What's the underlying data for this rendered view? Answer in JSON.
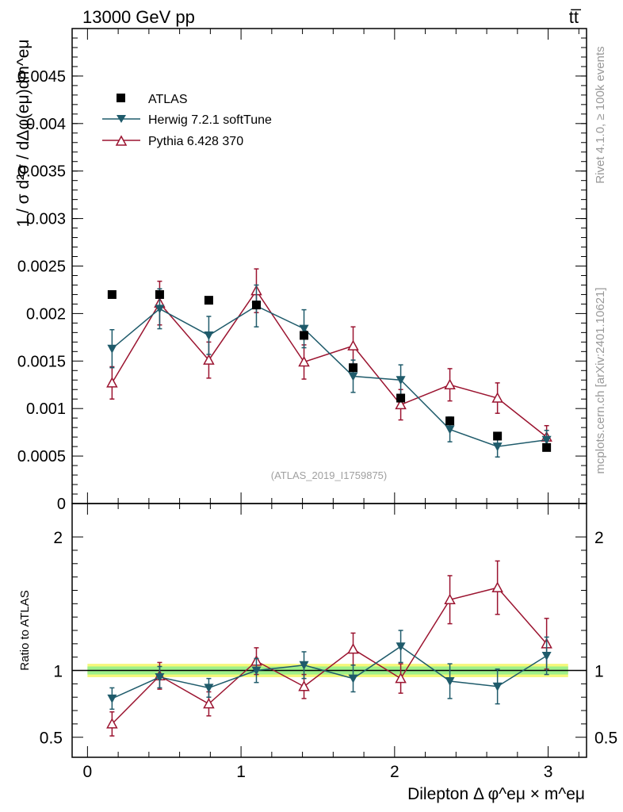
{
  "header": {
    "left": "13000 GeV pp",
    "right": "tt̅"
  },
  "side_labels": {
    "rivet": "Rivet 4.1.0, ≥ 100k events",
    "mcplots": "mcplots.cern.ch [arXiv:2401.10621]"
  },
  "analysis_id": "(ATLAS_2019_I1759875)",
  "legend": [
    {
      "name": "ATLAS",
      "color": "#000000",
      "marker": "square"
    },
    {
      "name": "Herwig 7.2.1 softTune",
      "color": "#1f5b6b",
      "marker": "triangle-down"
    },
    {
      "name": "Pythia 6.428 370",
      "color": "#9b1430",
      "marker": "triangle-up-open"
    }
  ],
  "chart_data": [
    {
      "type": "scatter",
      "panel": "main",
      "ylabel": "1 / σ  d²σ / dΔφ(eμ)dm^eμ",
      "xlim": [
        -0.1,
        3.25
      ],
      "ylim": [
        0,
        0.005
      ],
      "yticks": [
        {
          "v": 0,
          "label": "0"
        },
        {
          "v": 0.0005,
          "label": "0.0005"
        },
        {
          "v": 0.001,
          "label": "0.001"
        },
        {
          "v": 0.0015,
          "label": "0.0015"
        },
        {
          "v": 0.002,
          "label": "0.002"
        },
        {
          "v": 0.0025,
          "label": "0.0025"
        },
        {
          "v": 0.003,
          "label": "0.003"
        },
        {
          "v": 0.0035,
          "label": "0.0035"
        },
        {
          "v": 0.004,
          "label": "0.004"
        },
        {
          "v": 0.0045,
          "label": "0.0045"
        }
      ],
      "x": [
        0.16,
        0.47,
        0.79,
        1.1,
        1.41,
        1.73,
        2.04,
        2.36,
        2.67,
        2.99
      ],
      "series": [
        {
          "name": "ATLAS",
          "values": [
            0.0022,
            0.0022,
            0.00214,
            0.00209,
            0.00177,
            0.00143,
            0.00111,
            0.00087,
            0.00071,
            0.00059
          ]
        },
        {
          "name": "Herwig 7.2.1 softTune",
          "values": [
            0.00163,
            0.00205,
            0.00177,
            0.00208,
            0.00184,
            0.00134,
            0.0013,
            0.00078,
            0.0006,
            0.00067
          ],
          "errors": [
            0.0002,
            0.00021,
            0.0002,
            0.00022,
            0.0002,
            0.00017,
            0.00016,
            0.00013,
            0.00011,
            0.0001
          ]
        },
        {
          "name": "Pythia 6.428 370",
          "values": [
            0.00127,
            0.00211,
            0.00151,
            0.00224,
            0.00149,
            0.00166,
            0.00104,
            0.00125,
            0.00111,
            0.0007
          ],
          "errors": [
            0.00017,
            0.00023,
            0.00019,
            0.00023,
            0.00018,
            0.0002,
            0.00016,
            0.00017,
            0.00016,
            0.00012
          ]
        }
      ]
    },
    {
      "type": "scatter",
      "panel": "ratio",
      "ylabel": "Ratio to ATLAS",
      "xlabel": "Dilepton Δ φ^eμ × m^eμ",
      "xlim": [
        -0.1,
        3.25
      ],
      "ylim": [
        0.35,
        2.25
      ],
      "xticks": [
        {
          "v": 0,
          "label": "0"
        },
        {
          "v": 1,
          "label": "1"
        },
        {
          "v": 2,
          "label": "2"
        },
        {
          "v": 3,
          "label": "3"
        }
      ],
      "yticks": [
        {
          "v": 0.5,
          "label": "0.5"
        },
        {
          "v": 1,
          "label": "1"
        },
        {
          "v": 2,
          "label": "2"
        }
      ],
      "x": [
        0.16,
        0.47,
        0.79,
        1.1,
        1.41,
        1.73,
        2.04,
        2.36,
        2.67,
        2.99
      ],
      "band": {
        "inner": 0.03,
        "outer": 0.05
      },
      "series": [
        {
          "name": "Herwig 7.2.1 softTune",
          "values": [
            0.79,
            0.95,
            0.87,
            1.0,
            1.04,
            0.94,
            1.18,
            0.92,
            0.88,
            1.11
          ],
          "errors": [
            0.08,
            0.08,
            0.07,
            0.09,
            0.1,
            0.1,
            0.12,
            0.13,
            0.13,
            0.14
          ]
        },
        {
          "name": "Pythia 6.428 370",
          "values": [
            0.6,
            0.96,
            0.75,
            1.07,
            0.88,
            1.16,
            0.94,
            1.53,
            1.62,
            1.2
          ],
          "errors": [
            0.09,
            0.1,
            0.09,
            0.1,
            0.09,
            0.12,
            0.11,
            0.18,
            0.2,
            0.19
          ]
        }
      ]
    }
  ]
}
